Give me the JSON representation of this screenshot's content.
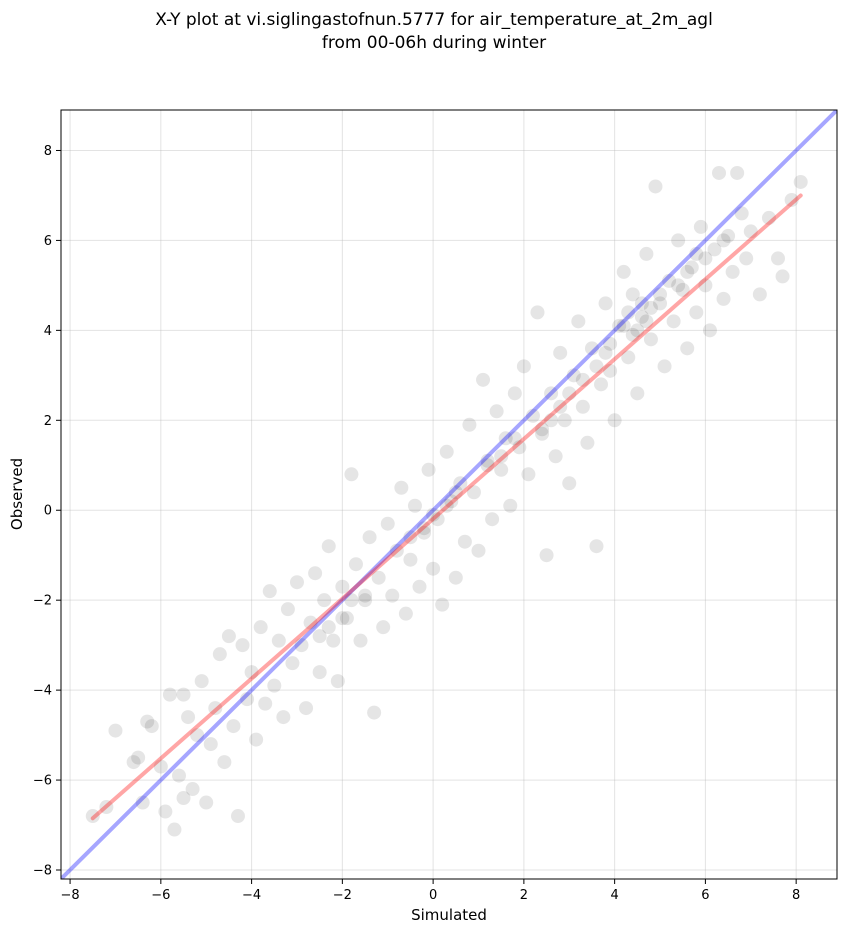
{
  "chart_data": {
    "type": "scatter",
    "title": "X-Y plot at vi.siglingastofnun.5777 for air_temperature_at_2m_agl",
    "subtitle": "from 00-06h during winter",
    "xlabel": "Simulated",
    "ylabel": "Observed",
    "xlim": [
      -8.2,
      8.9
    ],
    "ylim": [
      -8.2,
      8.9
    ],
    "xticks": [
      -8,
      -6,
      -4,
      -2,
      0,
      2,
      4,
      6,
      8
    ],
    "yticks": [
      -8,
      -6,
      -4,
      -2,
      0,
      2,
      4,
      6,
      8
    ],
    "grid": true,
    "point_color": "#000000",
    "point_alpha": 0.1,
    "one_to_one_line": {
      "color": "#0000ff",
      "x": [
        -8.2,
        8.9
      ],
      "y": [
        -8.2,
        8.9
      ]
    },
    "fit_line": {
      "color": "#ff0000",
      "x": [
        -7.5,
        8.1
      ],
      "y": [
        -6.85,
        7.0
      ]
    },
    "points": [
      [
        -7.5,
        -6.8
      ],
      [
        -7.2,
        -6.6
      ],
      [
        -7.0,
        -4.9
      ],
      [
        -6.6,
        -5.6
      ],
      [
        -6.5,
        -5.5
      ],
      [
        -6.4,
        -6.5
      ],
      [
        -6.3,
        -4.7
      ],
      [
        -6.2,
        -4.8
      ],
      [
        -6.0,
        -5.7
      ],
      [
        -5.9,
        -6.7
      ],
      [
        -5.8,
        -4.1
      ],
      [
        -5.7,
        -7.1
      ],
      [
        -5.6,
        -5.9
      ],
      [
        -5.5,
        -6.4
      ],
      [
        -5.5,
        -4.1
      ],
      [
        -5.4,
        -4.6
      ],
      [
        -5.3,
        -6.2
      ],
      [
        -5.2,
        -5.0
      ],
      [
        -5.1,
        -3.8
      ],
      [
        -5.0,
        -6.5
      ],
      [
        -4.9,
        -5.2
      ],
      [
        -4.8,
        -4.4
      ],
      [
        -4.7,
        -3.2
      ],
      [
        -4.6,
        -5.6
      ],
      [
        -4.5,
        -2.8
      ],
      [
        -4.4,
        -4.8
      ],
      [
        -4.3,
        -6.8
      ],
      [
        -4.2,
        -3.0
      ],
      [
        -4.1,
        -4.2
      ],
      [
        -4.0,
        -3.6
      ],
      [
        -3.9,
        -5.1
      ],
      [
        -3.8,
        -2.6
      ],
      [
        -3.7,
        -4.3
      ],
      [
        -3.6,
        -1.8
      ],
      [
        -3.5,
        -3.9
      ],
      [
        -3.4,
        -2.9
      ],
      [
        -3.3,
        -4.6
      ],
      [
        -3.2,
        -2.2
      ],
      [
        -3.1,
        -3.4
      ],
      [
        -3.0,
        -1.6
      ],
      [
        -2.9,
        -3.0
      ],
      [
        -2.8,
        -4.4
      ],
      [
        -2.7,
        -2.5
      ],
      [
        -2.6,
        -1.4
      ],
      [
        -2.5,
        -3.6
      ],
      [
        -2.4,
        -2.0
      ],
      [
        -2.3,
        -0.8
      ],
      [
        -2.2,
        -2.9
      ],
      [
        -2.1,
        -3.8
      ],
      [
        -2.0,
        -1.7
      ],
      [
        -1.9,
        -2.4
      ],
      [
        -1.8,
        0.8
      ],
      [
        -1.7,
        -1.2
      ],
      [
        -1.6,
        -2.9
      ],
      [
        -1.5,
        -2.0
      ],
      [
        -1.4,
        -0.6
      ],
      [
        -1.3,
        -4.5
      ],
      [
        -1.2,
        -1.5
      ],
      [
        -1.1,
        -2.6
      ],
      [
        -1.0,
        -0.3
      ],
      [
        -0.9,
        -1.9
      ],
      [
        -0.8,
        -0.9
      ],
      [
        -0.7,
        0.5
      ],
      [
        -0.6,
        -2.3
      ],
      [
        -0.5,
        -1.1
      ],
      [
        -0.4,
        0.1
      ],
      [
        -0.3,
        -1.7
      ],
      [
        -0.2,
        -0.5
      ],
      [
        -0.1,
        0.9
      ],
      [
        0.0,
        -1.3
      ],
      [
        0.1,
        -0.2
      ],
      [
        0.2,
        -2.1
      ],
      [
        0.3,
        1.3
      ],
      [
        0.4,
        0.2
      ],
      [
        0.5,
        -1.5
      ],
      [
        0.6,
        0.6
      ],
      [
        0.7,
        -0.7
      ],
      [
        0.8,
        1.9
      ],
      [
        0.9,
        0.4
      ],
      [
        1.0,
        -0.9
      ],
      [
        1.1,
        2.9
      ],
      [
        1.2,
        1.1
      ],
      [
        1.3,
        -0.2
      ],
      [
        1.4,
        2.2
      ],
      [
        1.5,
        0.9
      ],
      [
        1.6,
        1.6
      ],
      [
        1.7,
        0.1
      ],
      [
        1.8,
        2.6
      ],
      [
        1.9,
        1.4
      ],
      [
        2.0,
        3.2
      ],
      [
        2.1,
        0.8
      ],
      [
        2.2,
        2.1
      ],
      [
        2.3,
        4.4
      ],
      [
        2.4,
        1.7
      ],
      [
        2.5,
        -1.0
      ],
      [
        2.6,
        2.6
      ],
      [
        2.7,
        1.2
      ],
      [
        2.8,
        3.5
      ],
      [
        2.9,
        2.0
      ],
      [
        3.0,
        0.6
      ],
      [
        3.1,
        3.0
      ],
      [
        3.2,
        4.2
      ],
      [
        3.3,
        2.3
      ],
      [
        3.4,
        1.5
      ],
      [
        3.5,
        3.6
      ],
      [
        3.6,
        -0.8
      ],
      [
        3.7,
        2.8
      ],
      [
        3.8,
        4.6
      ],
      [
        3.9,
        3.1
      ],
      [
        4.0,
        2.0
      ],
      [
        4.1,
        4.1
      ],
      [
        4.2,
        5.3
      ],
      [
        4.3,
        3.4
      ],
      [
        4.4,
        4.8
      ],
      [
        4.5,
        2.6
      ],
      [
        4.6,
        4.3
      ],
      [
        4.7,
        5.7
      ],
      [
        4.8,
        3.8
      ],
      [
        4.9,
        7.2
      ],
      [
        5.0,
        4.6
      ],
      [
        5.1,
        3.2
      ],
      [
        5.2,
        5.1
      ],
      [
        5.3,
        4.2
      ],
      [
        5.4,
        6.0
      ],
      [
        5.5,
        4.9
      ],
      [
        5.6,
        3.6
      ],
      [
        5.7,
        5.4
      ],
      [
        5.8,
        4.4
      ],
      [
        5.9,
        6.3
      ],
      [
        6.0,
        5.0
      ],
      [
        6.1,
        4.0
      ],
      [
        6.2,
        5.8
      ],
      [
        6.3,
        7.5
      ],
      [
        6.4,
        4.7
      ],
      [
        6.5,
        6.1
      ],
      [
        6.6,
        5.3
      ],
      [
        6.7,
        7.5
      ],
      [
        6.8,
        6.6
      ],
      [
        6.9,
        5.6
      ],
      [
        7.0,
        6.2
      ],
      [
        7.2,
        4.8
      ],
      [
        7.4,
        6.5
      ],
      [
        7.6,
        5.6
      ],
      [
        7.7,
        5.2
      ],
      [
        7.9,
        6.9
      ],
      [
        8.1,
        7.3
      ],
      [
        4.3,
        4.4
      ],
      [
        4.5,
        4.0
      ],
      [
        4.6,
        4.6
      ],
      [
        4.7,
        4.2
      ],
      [
        4.4,
        3.9
      ],
      [
        4.8,
        4.5
      ],
      [
        4.2,
        4.1
      ],
      [
        3.9,
        3.7
      ],
      [
        5.0,
        4.8
      ],
      [
        2.6,
        2.0
      ],
      [
        2.8,
        2.3
      ],
      [
        3.0,
        2.6
      ],
      [
        2.4,
        1.8
      ],
      [
        3.3,
        2.9
      ],
      [
        -2.0,
        -2.4
      ],
      [
        -1.8,
        -2.0
      ],
      [
        -2.3,
        -2.6
      ],
      [
        -1.5,
        -1.9
      ],
      [
        -2.5,
        -2.8
      ],
      [
        -0.2,
        -0.4
      ],
      [
        0.0,
        -0.1
      ],
      [
        0.3,
        0.1
      ],
      [
        -0.5,
        -0.6
      ],
      [
        0.5,
        0.4
      ],
      [
        1.5,
        1.2
      ],
      [
        1.8,
        1.6
      ],
      [
        1.2,
        1.0
      ],
      [
        3.6,
        3.2
      ],
      [
        3.8,
        3.5
      ],
      [
        5.4,
        5.0
      ],
      [
        5.6,
        5.3
      ],
      [
        6.0,
        5.6
      ],
      [
        5.8,
        5.7
      ],
      [
        6.4,
        6.0
      ]
    ]
  }
}
